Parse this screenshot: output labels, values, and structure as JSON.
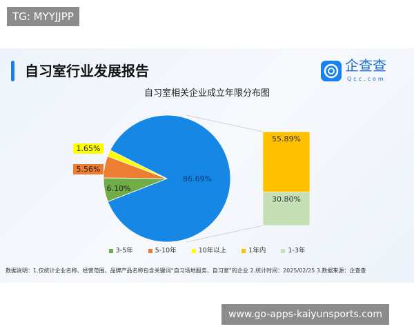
{
  "watermarks": {
    "top_left": "TG: MYYJJPP",
    "bottom_right": "www.go-apps-kaiyunsports.com"
  },
  "header": {
    "title": "自习室行业发展报告",
    "logo_text": "企查查",
    "logo_sub": "Qcc.com"
  },
  "footnote": "数据说明：1.仅统计企业名称、经营范围、品牌产品名称包含关键词“自习场地服务、自习室”的企业  2.统计时间：2025/02/25   3.数据来源：企查查",
  "colors": {
    "accent": "#1a7fe8"
  },
  "chart_data": {
    "type": "bar-of-pie",
    "title": "自习室相关企业成立年限分布图",
    "pie": [
      {
        "name": "",
        "value": 86.69,
        "label": "86.69%",
        "color": "#1787e5"
      },
      {
        "name": "3-5年",
        "value": 6.1,
        "label": "6.10%",
        "color": "#70ad47"
      },
      {
        "name": "5-10年",
        "value": 5.56,
        "label": "5.56%",
        "color": "#ed7d31"
      },
      {
        "name": "10年以上",
        "value": 1.65,
        "label": "1.65%",
        "color": "#ffff00"
      }
    ],
    "bar": [
      {
        "name": "1年内",
        "value": 55.89,
        "label": "55.89%",
        "color": "#ffc000"
      },
      {
        "name": "1-3年",
        "value": 30.8,
        "label": "30.80%",
        "color": "#c5e0b4"
      }
    ],
    "legend": [
      {
        "name": "3-5年",
        "color": "#70ad47"
      },
      {
        "name": "5-10年",
        "color": "#ed7d31"
      },
      {
        "name": "10年以上",
        "color": "#ffff00"
      },
      {
        "name": "1年内",
        "color": "#ffc000"
      },
      {
        "name": "1-3年",
        "color": "#c5e0b4"
      }
    ],
    "legend_position": "bottom"
  }
}
